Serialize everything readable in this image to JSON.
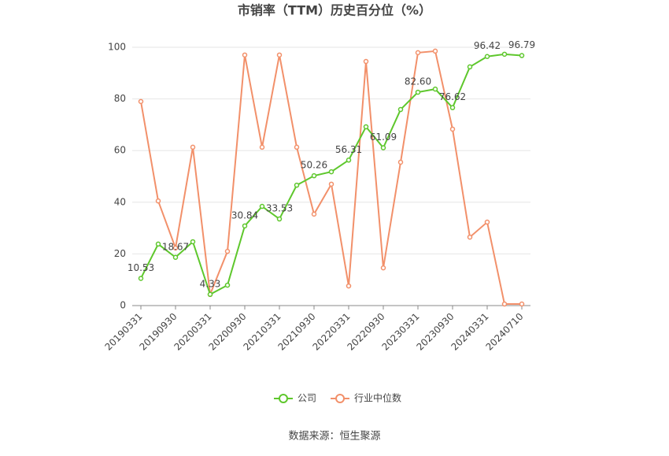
{
  "chart_data": {
    "type": "line",
    "title": "市销率（TTM）历史百分位（%）",
    "categories": [
      "20190331",
      null,
      "20190930",
      null,
      "20200331",
      null,
      "20200930",
      null,
      "20210331",
      null,
      "20210930",
      null,
      "20220331",
      null,
      "20220930",
      null,
      "20230331",
      null,
      "20230930",
      null,
      "20240331",
      null,
      "20240710"
    ],
    "series": [
      {
        "name": "公司",
        "color": "#5ec72c",
        "values": [
          10.53,
          23.8,
          18.67,
          24.7,
          4.33,
          7.9,
          30.84,
          38.4,
          33.53,
          46.6,
          50.26,
          51.8,
          56.31,
          69.2,
          61.09,
          75.9,
          82.6,
          83.8,
          76.62,
          92.4,
          96.42,
          97.3,
          96.79
        ],
        "value_labels": [
          "10.53",
          null,
          "18.67",
          null,
          "4.33",
          null,
          "30.84",
          null,
          "33.53",
          null,
          "50.26",
          null,
          "56.31",
          null,
          "61.09",
          null,
          "82.60",
          null,
          "76.62",
          null,
          "96.42",
          null,
          "96.79"
        ]
      },
      {
        "name": "行业中位数",
        "color": "#f2906a",
        "values": [
          79.0,
          40.5,
          22.3,
          61.3,
          4.3,
          21.0,
          97.0,
          61.3,
          97.0,
          61.3,
          35.4,
          47.0,
          7.6,
          94.5,
          14.6,
          55.5,
          97.9,
          98.5,
          68.3,
          26.5,
          32.3,
          0.6,
          0.6
        ]
      }
    ],
    "ylim": [
      0,
      100
    ],
    "yticks": [
      0,
      20,
      40,
      60,
      80,
      100
    ],
    "grid": true,
    "legend": "bottom",
    "source": "数据来源：恒生聚源"
  }
}
